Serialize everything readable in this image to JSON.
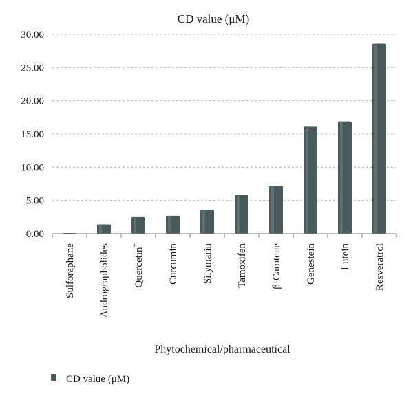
{
  "chart_data": {
    "type": "bar",
    "title": "CD value (μM)",
    "xlabel": "Phytochemical/pharmaceutical",
    "ylabel": "",
    "ylim": [
      0,
      30
    ],
    "yticks": [
      "0.00",
      "5.00",
      "10.00",
      "15.00",
      "20.00",
      "25.00",
      "30.00"
    ],
    "grid": true,
    "legend_position": "bottom-left",
    "categories": [
      "Sulforaphane",
      "Andrographolides",
      "Quercetin*",
      "Curcumin",
      "Silymarin",
      "Tamoxifen",
      "β-Carotene",
      "Genestein",
      "Lutein",
      "Resveratrol"
    ],
    "series": [
      {
        "name": "CD value (μM)",
        "color": "#4a5a5a",
        "values": [
          0.1,
          1.4,
          2.5,
          2.7,
          3.6,
          5.8,
          7.2,
          16.1,
          16.9,
          28.6
        ]
      }
    ]
  }
}
